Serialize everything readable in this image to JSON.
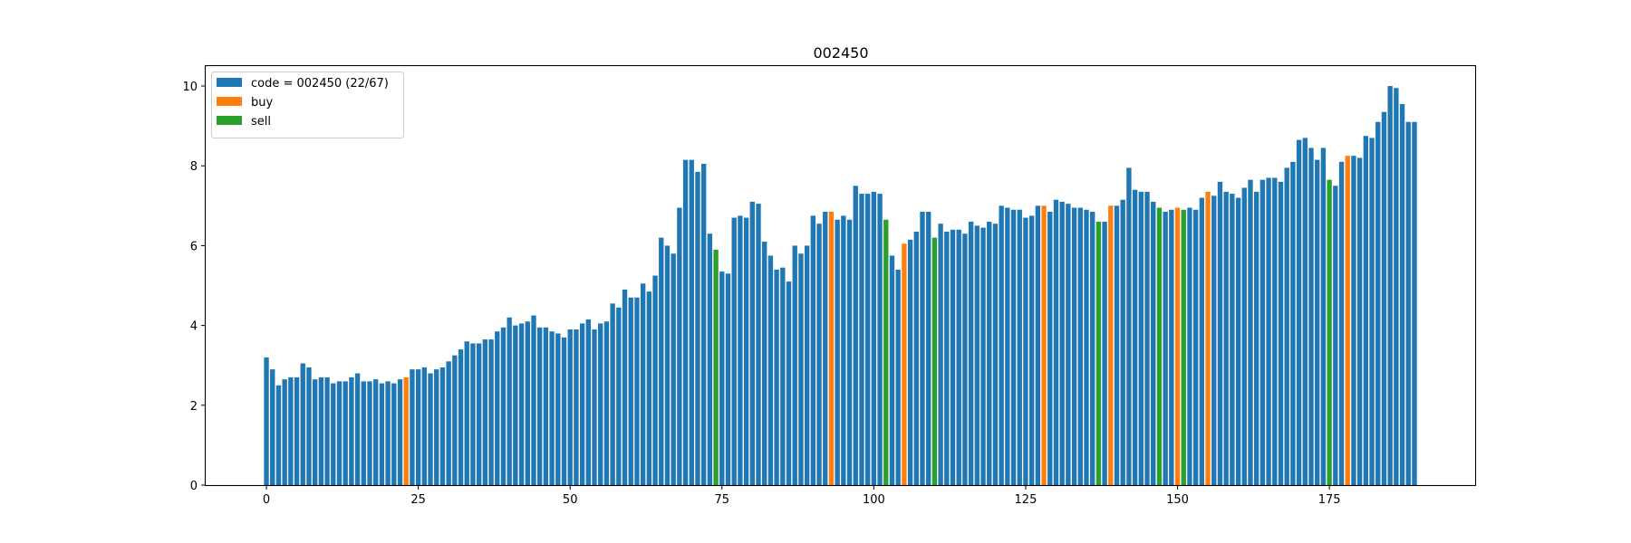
{
  "chart_data": {
    "type": "bar",
    "title": "002450",
    "xlabel": "",
    "ylabel": "",
    "xlim": [
      -10,
      199
    ],
    "ylim": [
      0,
      10.5
    ],
    "xticks": [
      0,
      25,
      50,
      75,
      100,
      125,
      150,
      175
    ],
    "yticks": [
      0,
      2,
      4,
      6,
      8,
      10
    ],
    "grid": false,
    "legend_position": "top-left",
    "legend": [
      {
        "label": "code = 002450 (22/67)",
        "color": "#1f77b4"
      },
      {
        "label": "buy",
        "color": "#ff7f0e"
      },
      {
        "label": "sell",
        "color": "#2ca02c"
      }
    ],
    "colors": {
      "price": "#1f77b4",
      "buy": "#ff7f0e",
      "sell": "#2ca02c"
    },
    "values": [
      3.2,
      2.9,
      2.5,
      2.65,
      2.7,
      2.7,
      3.05,
      2.95,
      2.65,
      2.7,
      2.7,
      2.55,
      2.6,
      2.6,
      2.7,
      2.8,
      2.6,
      2.6,
      2.65,
      2.55,
      2.6,
      2.55,
      2.65,
      2.7,
      2.9,
      2.9,
      2.95,
      2.8,
      2.9,
      2.95,
      3.1,
      3.25,
      3.4,
      3.6,
      3.55,
      3.55,
      3.65,
      3.65,
      3.85,
      3.95,
      4.2,
      4.0,
      4.05,
      4.1,
      4.25,
      3.95,
      3.95,
      3.85,
      3.8,
      3.7,
      3.9,
      3.9,
      4.05,
      4.15,
      3.9,
      4.05,
      4.1,
      4.55,
      4.45,
      4.9,
      4.7,
      4.7,
      5.05,
      4.85,
      5.25,
      6.2,
      6.0,
      5.8,
      6.95,
      8.15,
      8.15,
      7.85,
      8.05,
      6.3,
      5.9,
      5.35,
      5.3,
      6.7,
      6.75,
      6.7,
      7.1,
      7.05,
      6.1,
      5.75,
      5.4,
      5.45,
      5.1,
      6.0,
      5.8,
      6.0,
      6.75,
      6.55,
      6.85,
      6.85,
      6.65,
      6.75,
      6.65,
      7.5,
      7.3,
      7.3,
      7.35,
      7.3,
      6.65,
      5.75,
      5.4,
      6.05,
      6.15,
      6.35,
      6.85,
      6.85,
      6.2,
      6.55,
      6.35,
      6.4,
      6.4,
      6.3,
      6.6,
      6.5,
      6.45,
      6.6,
      6.55,
      7.0,
      6.95,
      6.9,
      6.9,
      6.7,
      6.75,
      7.0,
      7.0,
      6.85,
      7.15,
      7.1,
      7.05,
      6.95,
      6.95,
      6.9,
      6.85,
      6.6,
      6.6,
      7.0,
      7.0,
      7.15,
      7.95,
      7.4,
      7.35,
      7.35,
      7.1,
      6.95,
      6.85,
      6.9,
      6.95,
      6.9,
      6.95,
      6.9,
      7.2,
      7.35,
      7.25,
      7.6,
      7.35,
      7.3,
      7.2,
      7.45,
      7.65,
      7.35,
      7.65,
      7.7,
      7.7,
      7.6,
      7.95,
      8.1,
      8.65,
      8.7,
      8.45,
      8.15,
      8.45,
      7.65,
      7.5,
      8.1,
      8.25,
      8.25,
      8.2,
      8.75,
      8.7,
      9.1,
      9.35,
      10.0,
      9.95,
      9.55,
      9.1,
      9.1
    ],
    "buy_indices": [
      23,
      93,
      105,
      128,
      139,
      150,
      155,
      178
    ],
    "sell_indices": [
      74,
      102,
      110,
      137,
      147,
      151,
      175
    ]
  }
}
